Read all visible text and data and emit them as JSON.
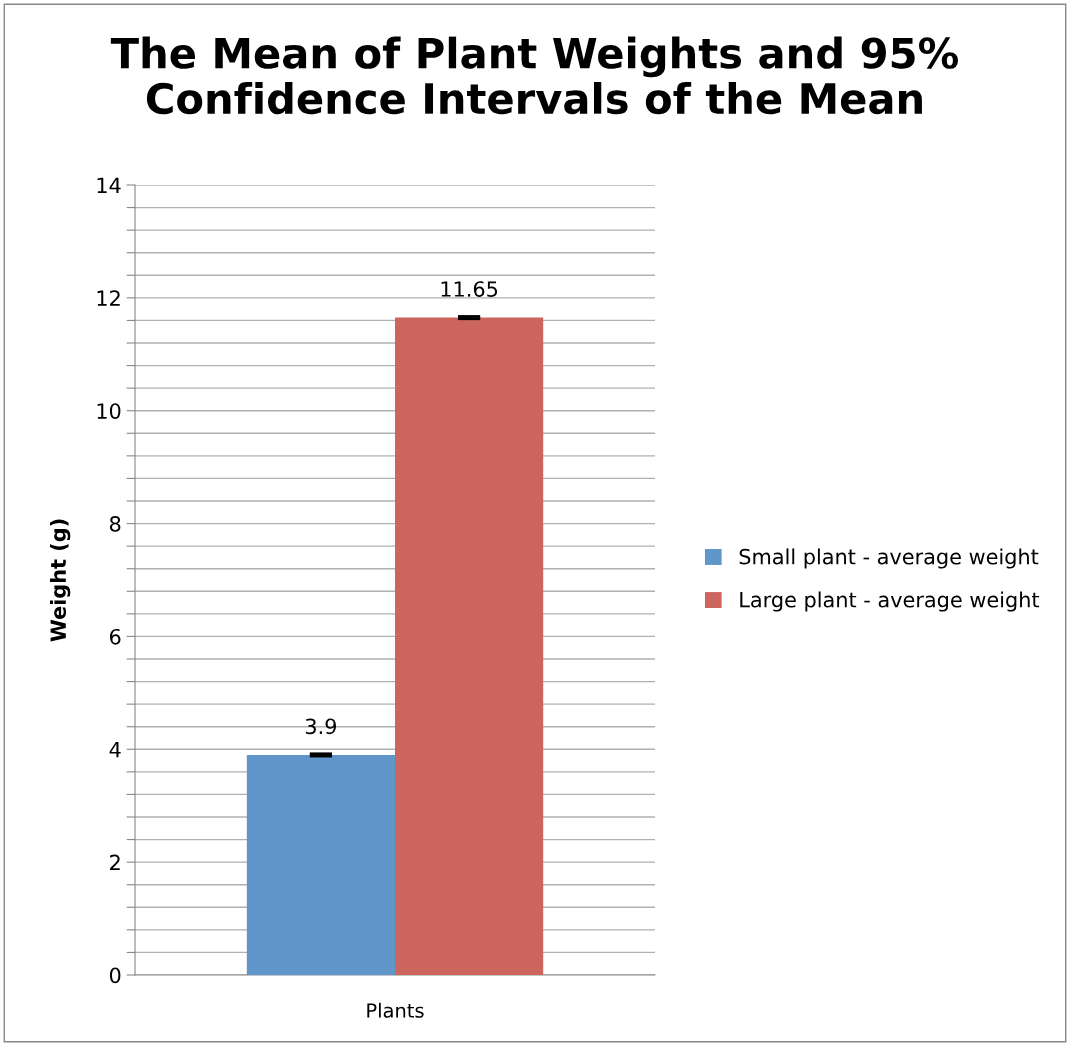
{
  "chart_data": {
    "type": "bar",
    "title": "The Mean of Plant Weights and 95%\nConfidence Intervals of the Mean",
    "ylabel": "Weight (g)",
    "categories": [
      "Plants"
    ],
    "series": [
      {
        "name": "Small plant - average weight",
        "color": "#6096c9",
        "values": [
          3.9
        ],
        "errors": [
          0.02
        ]
      },
      {
        "name": "Large plant - average weight",
        "color": "#cc655e",
        "values": [
          11.65
        ],
        "errors": [
          0.02
        ]
      }
    ],
    "ylim": [
      0,
      14
    ],
    "yticks": [
      0,
      {
        "value": 0.4,
        "label": null
      },
      {
        "value": 0.8,
        "label": null
      },
      {
        "value": 1.2,
        "label": null
      },
      {
        "value": 1.6,
        "label": null
      },
      2,
      {
        "value": 2.4,
        "label": null
      },
      {
        "value": 2.8,
        "label": null
      },
      {
        "value": 3.2,
        "label": null
      },
      {
        "value": 3.6,
        "label": null
      },
      4,
      {
        "value": 4.4,
        "label": null
      },
      {
        "value": 4.8,
        "label": null
      },
      {
        "value": 5.2,
        "label": null
      },
      {
        "value": 5.6,
        "label": null
      },
      6,
      {
        "value": 6.4,
        "label": null
      },
      {
        "value": 6.8,
        "label": null
      },
      {
        "value": 7.2,
        "label": null
      },
      {
        "value": 7.6,
        "label": null
      },
      8,
      {
        "value": 8.4,
        "label": null
      },
      {
        "value": 8.8,
        "label": null
      },
      {
        "value": 9.2,
        "label": null
      },
      {
        "value": 9.6,
        "label": null
      },
      10,
      {
        "value": 10.4,
        "label": null
      },
      {
        "value": 10.8,
        "label": null
      },
      {
        "value": 11.2,
        "label": null
      },
      {
        "value": 11.6,
        "label": null
      },
      12,
      {
        "value": 12.4,
        "label": null
      },
      {
        "value": 12.8,
        "label": null
      },
      {
        "value": 13.2,
        "label": null
      },
      {
        "value": 13.6,
        "label": null
      },
      14
    ],
    "grid": "y",
    "legend": "right",
    "data_labels": true
  }
}
